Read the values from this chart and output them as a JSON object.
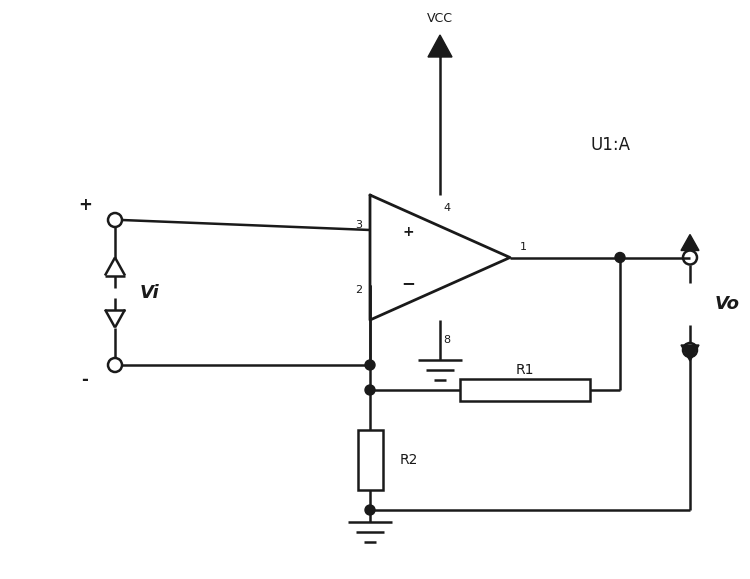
{
  "bg_color": "#ffffff",
  "line_color": "#1a1a1a",
  "line_width": 1.8,
  "fig_width": 7.5,
  "fig_height": 5.79,
  "dpi": 100,
  "vcc_label": "VCC",
  "u1a_label": "U1:A",
  "vi_label": "Vi",
  "vo_label": "Vo",
  "r1_label": "R1",
  "r2_label": "R2",
  "plus_label": "+",
  "minus_label": "-",
  "pin1": "1",
  "pin2": "2",
  "pin3": "3",
  "pin4": "4",
  "pin8": "8"
}
